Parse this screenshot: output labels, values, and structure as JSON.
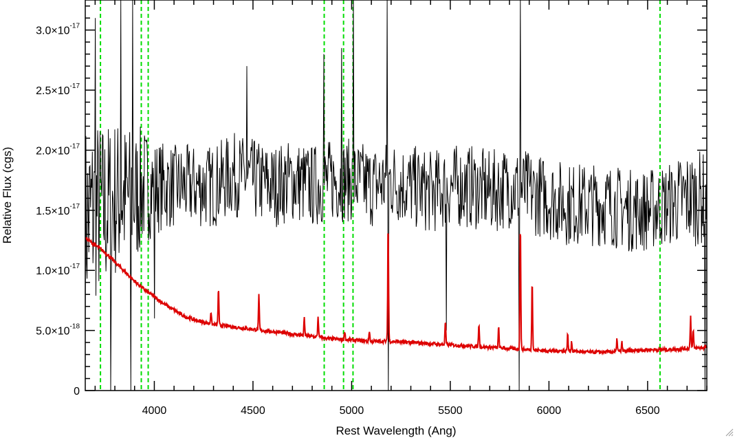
{
  "chart_data": {
    "type": "line",
    "title": "",
    "xlabel": "Rest Wavelength (Ang)",
    "ylabel": "Relative Flux (cgs)",
    "xlim": [
      3650,
      6800
    ],
    "ylim": [
      0,
      3.25e-17
    ],
    "grid": false,
    "x_ticks": [
      {
        "value": 4000,
        "label": "4000"
      },
      {
        "value": 4500,
        "label": "4500"
      },
      {
        "value": 5000,
        "label": "5000"
      },
      {
        "value": 5500,
        "label": "5500"
      },
      {
        "value": 6000,
        "label": "6000"
      },
      {
        "value": 6500,
        "label": "6500"
      }
    ],
    "y_ticks": [
      {
        "value": 0,
        "mant": "0",
        "exp": ""
      },
      {
        "value": 5e-18,
        "mant": "5.0×10",
        "exp": "-18"
      },
      {
        "value": 1e-17,
        "mant": "1.0×10",
        "exp": "-17"
      },
      {
        "value": 1.5e-17,
        "mant": "1.5×10",
        "exp": "-17"
      },
      {
        "value": 2e-17,
        "mant": "2.0×10",
        "exp": "-17"
      },
      {
        "value": 2.5e-17,
        "mant": "2.5×10",
        "exp": "-17"
      },
      {
        "value": 3e-17,
        "mant": "3.0×10",
        "exp": "-17"
      }
    ],
    "vlines": [
      {
        "x": 3727,
        "color": "#00dd00"
      },
      {
        "x": 3934,
        "color": "#00dd00"
      },
      {
        "x": 3969,
        "color": "#00dd00"
      },
      {
        "x": 4861,
        "color": "#00dd00"
      },
      {
        "x": 4959,
        "color": "#00dd00"
      },
      {
        "x": 5007,
        "color": "#00dd00"
      },
      {
        "x": 6563,
        "color": "#00dd00"
      }
    ],
    "series": [
      {
        "color": "#000000",
        "style": "noisy-spectrum",
        "x": [
          3650,
          3700,
          3750,
          3800,
          3850,
          3900,
          3950,
          4000,
          4100,
          4200,
          4300,
          4400,
          4500,
          4600,
          4700,
          4800,
          4900,
          5000,
          5100,
          5200,
          5300,
          5400,
          5500,
          5600,
          5700,
          5800,
          5900,
          6000,
          6100,
          6200,
          6300,
          6400,
          6500,
          6600,
          6700,
          6800
        ],
        "y": [
          1.4e-17,
          1.5e-17,
          1.5e-17,
          1.6e-17,
          1.6e-17,
          1.6e-17,
          1.7e-17,
          1.7e-17,
          1.7e-17,
          1.7e-17,
          1.7e-17,
          1.8e-17,
          1.75e-17,
          1.7e-17,
          1.75e-17,
          1.7e-17,
          1.75e-17,
          1.75e-17,
          1.7e-17,
          1.75e-17,
          1.7e-17,
          1.65e-17,
          1.7e-17,
          1.7e-17,
          1.65e-17,
          1.7e-17,
          1.65e-17,
          1.6e-17,
          1.55e-17,
          1.55e-17,
          1.55e-17,
          1.5e-17,
          1.5e-17,
          1.55e-17,
          1.6e-17,
          1.6e-17
        ],
        "noise": [
          8.5e-18,
          8e-18,
          7.5e-18,
          7e-18,
          6.5e-18,
          6e-18,
          5e-18,
          4e-18,
          3.5e-18,
          3.5e-18,
          3.5e-18,
          3.5e-18,
          3.5e-18,
          3.5e-18,
          3.5e-18,
          3.5e-18,
          3.5e-18,
          3.5e-18,
          3.5e-18,
          3.5e-18,
          3.5e-18,
          3.5e-18,
          3.5e-18,
          3.5e-18,
          3.5e-18,
          3.5e-18,
          3.5e-18,
          3.5e-18,
          3.5e-18,
          3.5e-18,
          3.5e-18,
          3.5e-18,
          3.5e-18,
          3.5e-18,
          4e-18,
          4e-18
        ],
        "spikes": [
          {
            "x": 3700,
            "y": 3.1e-17
          },
          {
            "x": 3780,
            "y": 0
          },
          {
            "x": 3830,
            "y": 3.25e-17
          },
          {
            "x": 3880,
            "y": 0
          },
          {
            "x": 3890,
            "y": 3.25e-17
          },
          {
            "x": 4000,
            "y": 6e-18
          },
          {
            "x": 4470,
            "y": 2.7e-17
          },
          {
            "x": 4860,
            "y": 2.8e-17
          },
          {
            "x": 4950,
            "y": 2.85e-17
          },
          {
            "x": 5010,
            "y": 3.25e-17
          },
          {
            "x": 5180,
            "y": 3.25e-17
          },
          {
            "x": 5185,
            "y": 0
          },
          {
            "x": 5480,
            "y": 5e-18
          },
          {
            "x": 5850,
            "y": 0
          },
          {
            "x": 5855,
            "y": 3.25e-17
          },
          {
            "x": 6790,
            "y": 0
          }
        ]
      },
      {
        "color": "#dd0000",
        "style": "model",
        "x": [
          3650,
          3700,
          3750,
          3800,
          3850,
          3900,
          3950,
          4000,
          4050,
          4100,
          4150,
          4200,
          4250,
          4300,
          4400,
          4500,
          4600,
          4700,
          4800,
          4900,
          5000,
          5100,
          5200,
          5300,
          5400,
          5500,
          5600,
          5700,
          5800,
          5900,
          6000,
          6100,
          6200,
          6300,
          6400,
          6500,
          6600,
          6700,
          6800
        ],
        "y": [
          1.27e-17,
          1.21e-17,
          1.15e-17,
          1.07e-17,
          9.9e-18,
          9.1e-18,
          8.4e-18,
          7.8e-18,
          7.2e-18,
          6.7e-18,
          6.2e-18,
          5.9e-18,
          5.7e-18,
          5.5e-18,
          5.3e-18,
          5.1e-18,
          4.9e-18,
          4.7e-18,
          4.5e-18,
          4.3e-18,
          4.2e-18,
          4.1e-18,
          4.1e-18,
          4e-18,
          3.9e-18,
          3.8e-18,
          3.7e-18,
          3.6e-18,
          3.5e-18,
          3.4e-18,
          3.3e-18,
          3.3e-18,
          3.2e-18,
          3.2e-18,
          3.3e-18,
          3.4e-18,
          3.4e-18,
          3.5e-18,
          3.6e-18
        ],
        "lines": [
          {
            "x": 4287,
            "y": 6.6e-18
          },
          {
            "x": 4325,
            "y": 8.5e-18
          },
          {
            "x": 4530,
            "y": 7.9e-18
          },
          {
            "x": 4760,
            "y": 6e-18
          },
          {
            "x": 4830,
            "y": 6.2e-18
          },
          {
            "x": 4965,
            "y": 5e-18
          },
          {
            "x": 5090,
            "y": 5e-18
          },
          {
            "x": 5185,
            "y": 1.4e-17
          },
          {
            "x": 5475,
            "y": 5.8e-18
          },
          {
            "x": 5645,
            "y": 5.6e-18
          },
          {
            "x": 5745,
            "y": 5.3e-18
          },
          {
            "x": 5855,
            "y": 1.4e-17
          },
          {
            "x": 5915,
            "y": 9.3e-18
          },
          {
            "x": 6095,
            "y": 4.7e-18
          },
          {
            "x": 6115,
            "y": 4.1e-18
          },
          {
            "x": 6345,
            "y": 4.3e-18
          },
          {
            "x": 6370,
            "y": 4e-18
          },
          {
            "x": 6718,
            "y": 6.2e-18
          },
          {
            "x": 6731,
            "y": 5e-18
          }
        ]
      }
    ]
  }
}
